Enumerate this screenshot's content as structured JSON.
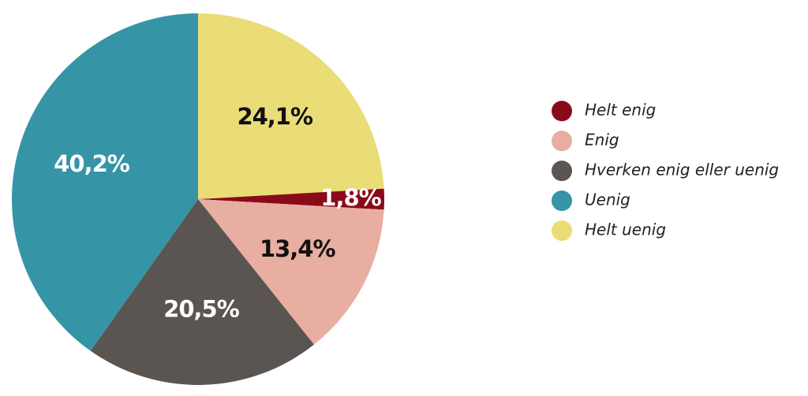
{
  "chart_data": {
    "type": "pie",
    "categories": [
      "Helt enig",
      "Enig",
      "Hverken enig eller uenig",
      "Uenig",
      "Helt uenig"
    ],
    "values": [
      1.8,
      13.4,
      20.5,
      40.2,
      24.1
    ],
    "value_labels": [
      "1,8%",
      "13,4%",
      "20,5%",
      "40,2%",
      "24,1%"
    ],
    "colors": [
      "#8b0a1a",
      "#e8aea1",
      "#5b5552",
      "#3594a6",
      "#eadc76"
    ]
  }
}
